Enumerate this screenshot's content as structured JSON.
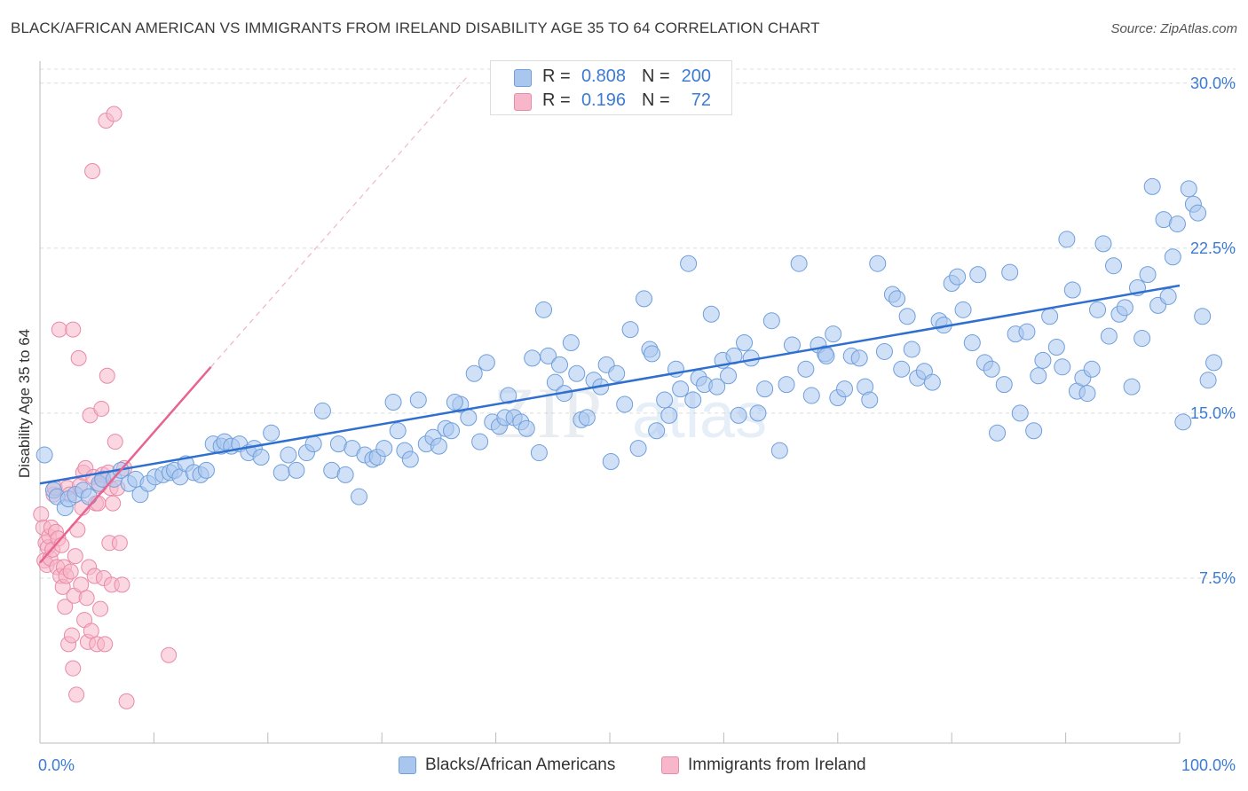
{
  "title": "BLACK/AFRICAN AMERICAN VS IMMIGRANTS FROM IRELAND DISABILITY AGE 35 TO 64 CORRELATION CHART",
  "source": "Source: ZipAtlas.com",
  "watermark": {
    "zip": "ZIP",
    "atlas": "atlas"
  },
  "colors": {
    "blue_fill": "#a9c7ee",
    "blue_stroke": "#6f9fdc",
    "blue_line": "#2e6fcf",
    "pink_fill": "#f7b6c9",
    "pink_stroke": "#e88aa8",
    "pink_line": "#e8638f",
    "axis_text": "#3b7bd4",
    "grid": "#dcdcdc"
  },
  "legend_box": {
    "rows": [
      {
        "r_label": "R =",
        "r_value": "0.808",
        "n_label": "N =",
        "n_value": "200"
      },
      {
        "r_label": "R =",
        "r_value": "0.196",
        "n_label": "N =",
        "n_value": "72"
      }
    ]
  },
  "legend": [
    "Blacks/African Americans",
    "Immigrants from Ireland"
  ],
  "chart_data": {
    "type": "scatter",
    "title": "BLACK/AFRICAN AMERICAN VS IMMIGRANTS FROM IRELAND DISABILITY AGE 35 TO 64 CORRELATION CHART",
    "xlabel": "",
    "ylabel": "Disability Age 35 to 64",
    "xlim": [
      0,
      100
    ],
    "ylim": [
      0,
      31
    ],
    "x_tick_labels": [
      "0.0%",
      "100.0%"
    ],
    "y_ticks": [
      7.5,
      15.0,
      22.5,
      30.0
    ],
    "y_tick_labels": [
      "7.5%",
      "15.0%",
      "22.5%",
      "30.0%"
    ],
    "grid": true,
    "legend_position": "bottom",
    "series": [
      {
        "name": "Blacks/African Americans",
        "color": "#a9c7ee",
        "r": 0.808,
        "n": 200,
        "trend": {
          "x": [
            0,
            100
          ],
          "y": [
            11.8,
            20.8
          ]
        },
        "points": [
          [
            0.4,
            13.1
          ],
          [
            1.2,
            11.5
          ],
          [
            1.5,
            11.2
          ],
          [
            2.2,
            10.7
          ],
          [
            2.5,
            11.1
          ],
          [
            3.1,
            11.3
          ],
          [
            3.8,
            11.5
          ],
          [
            4.3,
            11.2
          ],
          [
            5.2,
            11.8
          ],
          [
            5.5,
            12.0
          ],
          [
            6.5,
            12.0
          ],
          [
            7.1,
            12.4
          ],
          [
            7.8,
            11.8
          ],
          [
            8.4,
            12.0
          ],
          [
            8.8,
            11.3
          ],
          [
            9.5,
            11.8
          ],
          [
            10.1,
            12.1
          ],
          [
            10.8,
            12.2
          ],
          [
            11.4,
            12.3
          ],
          [
            11.8,
            12.4
          ],
          [
            12.3,
            12.1
          ],
          [
            12.8,
            12.7
          ],
          [
            13.5,
            12.3
          ],
          [
            14.1,
            12.2
          ],
          [
            14.6,
            12.4
          ],
          [
            15.2,
            13.6
          ],
          [
            15.9,
            13.5
          ],
          [
            16.2,
            13.7
          ],
          [
            16.8,
            13.5
          ],
          [
            17.5,
            13.6
          ],
          [
            18.3,
            13.2
          ],
          [
            18.8,
            13.4
          ],
          [
            19.4,
            13.0
          ],
          [
            20.3,
            14.1
          ],
          [
            21.2,
            12.3
          ],
          [
            21.8,
            13.1
          ],
          [
            22.5,
            12.4
          ],
          [
            23.4,
            13.2
          ],
          [
            24.0,
            13.6
          ],
          [
            24.8,
            15.1
          ],
          [
            25.6,
            12.4
          ],
          [
            26.2,
            13.6
          ],
          [
            26.8,
            12.2
          ],
          [
            27.4,
            13.4
          ],
          [
            28.0,
            11.2
          ],
          [
            28.5,
            13.1
          ],
          [
            29.2,
            12.9
          ],
          [
            29.6,
            13.0
          ],
          [
            30.2,
            13.4
          ],
          [
            31.0,
            15.5
          ],
          [
            31.4,
            14.2
          ],
          [
            32.0,
            13.3
          ],
          [
            32.5,
            12.9
          ],
          [
            33.2,
            15.6
          ],
          [
            33.9,
            13.6
          ],
          [
            34.5,
            13.9
          ],
          [
            35.0,
            13.5
          ],
          [
            35.6,
            14.3
          ],
          [
            36.1,
            14.2
          ],
          [
            36.9,
            15.4
          ],
          [
            37.6,
            14.8
          ],
          [
            38.1,
            16.8
          ],
          [
            38.6,
            13.7
          ],
          [
            39.2,
            17.3
          ],
          [
            39.7,
            14.6
          ],
          [
            40.3,
            14.4
          ],
          [
            40.8,
            14.8
          ],
          [
            41.1,
            15.8
          ],
          [
            41.6,
            14.8
          ],
          [
            42.2,
            14.6
          ],
          [
            42.7,
            14.3
          ],
          [
            43.2,
            17.5
          ],
          [
            43.8,
            13.2
          ],
          [
            44.2,
            19.7
          ],
          [
            44.6,
            17.6
          ],
          [
            45.2,
            16.4
          ],
          [
            45.6,
            17.2
          ],
          [
            46.0,
            15.9
          ],
          [
            46.6,
            18.2
          ],
          [
            47.1,
            16.8
          ],
          [
            47.5,
            14.7
          ],
          [
            48.0,
            14.8
          ],
          [
            48.6,
            16.5
          ],
          [
            49.2,
            16.2
          ],
          [
            49.7,
            17.2
          ],
          [
            50.1,
            12.8
          ],
          [
            50.6,
            16.8
          ],
          [
            51.3,
            15.4
          ],
          [
            51.8,
            18.8
          ],
          [
            52.5,
            13.4
          ],
          [
            53.0,
            20.2
          ],
          [
            53.5,
            17.9
          ],
          [
            54.1,
            14.2
          ],
          [
            54.8,
            15.6
          ],
          [
            55.2,
            14.9
          ],
          [
            55.8,
            17.0
          ],
          [
            56.2,
            16.1
          ],
          [
            56.9,
            21.8
          ],
          [
            57.3,
            15.6
          ],
          [
            57.8,
            16.6
          ],
          [
            58.3,
            16.3
          ],
          [
            58.9,
            19.5
          ],
          [
            59.4,
            16.2
          ],
          [
            59.9,
            17.4
          ],
          [
            60.4,
            16.7
          ],
          [
            60.9,
            17.6
          ],
          [
            61.3,
            14.9
          ],
          [
            61.8,
            18.2
          ],
          [
            62.4,
            17.5
          ],
          [
            63.0,
            15.0
          ],
          [
            63.6,
            16.1
          ],
          [
            64.2,
            19.2
          ],
          [
            64.9,
            13.3
          ],
          [
            65.5,
            16.3
          ],
          [
            66.0,
            18.1
          ],
          [
            66.6,
            21.8
          ],
          [
            67.2,
            17.0
          ],
          [
            67.7,
            15.8
          ],
          [
            68.3,
            18.1
          ],
          [
            68.9,
            17.7
          ],
          [
            69.6,
            18.6
          ],
          [
            70.0,
            15.7
          ],
          [
            70.6,
            16.1
          ],
          [
            71.2,
            17.6
          ],
          [
            71.9,
            17.5
          ],
          [
            72.4,
            16.2
          ],
          [
            72.8,
            15.6
          ],
          [
            73.5,
            21.8
          ],
          [
            74.1,
            17.8
          ],
          [
            74.8,
            20.4
          ],
          [
            75.2,
            20.2
          ],
          [
            75.6,
            17.0
          ],
          [
            76.1,
            19.4
          ],
          [
            76.5,
            17.9
          ],
          [
            77.0,
            16.6
          ],
          [
            77.6,
            16.9
          ],
          [
            78.3,
            16.4
          ],
          [
            78.9,
            19.2
          ],
          [
            79.3,
            19.0
          ],
          [
            80.0,
            20.9
          ],
          [
            80.5,
            21.2
          ],
          [
            81.0,
            19.7
          ],
          [
            81.8,
            18.2
          ],
          [
            82.3,
            21.3
          ],
          [
            82.9,
            17.3
          ],
          [
            83.5,
            17.0
          ],
          [
            84.0,
            14.1
          ],
          [
            84.6,
            16.3
          ],
          [
            85.1,
            21.4
          ],
          [
            85.6,
            18.6
          ],
          [
            86.0,
            15.0
          ],
          [
            86.6,
            18.7
          ],
          [
            87.2,
            14.2
          ],
          [
            87.6,
            16.7
          ],
          [
            88.0,
            17.4
          ],
          [
            88.6,
            19.4
          ],
          [
            89.2,
            18.0
          ],
          [
            89.7,
            17.1
          ],
          [
            90.1,
            22.9
          ],
          [
            90.6,
            20.6
          ],
          [
            91.0,
            16.0
          ],
          [
            91.5,
            16.6
          ],
          [
            91.9,
            15.9
          ],
          [
            92.3,
            17.0
          ],
          [
            92.8,
            19.7
          ],
          [
            93.3,
            22.7
          ],
          [
            93.8,
            18.5
          ],
          [
            94.2,
            21.7
          ],
          [
            94.7,
            19.5
          ],
          [
            95.2,
            19.8
          ],
          [
            95.8,
            16.2
          ],
          [
            96.3,
            20.7
          ],
          [
            96.7,
            18.4
          ],
          [
            97.2,
            21.3
          ],
          [
            97.6,
            25.3
          ],
          [
            98.1,
            19.9
          ],
          [
            98.6,
            23.8
          ],
          [
            99.0,
            20.3
          ],
          [
            99.4,
            22.1
          ],
          [
            99.8,
            23.6
          ],
          [
            100.3,
            14.6
          ],
          [
            100.8,
            25.2
          ],
          [
            101.2,
            24.5
          ],
          [
            101.6,
            24.1
          ],
          [
            102.0,
            19.4
          ],
          [
            102.5,
            16.5
          ],
          [
            103.0,
            17.3
          ],
          [
            36.4,
            15.5
          ],
          [
            53.7,
            17.7
          ],
          [
            69.0,
            17.6
          ]
        ]
      },
      {
        "name": "Immigrants from Ireland",
        "color": "#f7b6c9",
        "r": 0.196,
        "n": 72,
        "trend": {
          "x": [
            0,
            15
          ],
          "y": [
            8.2,
            17.1
          ]
        },
        "trend_extension": {
          "x": [
            15,
            37.5
          ],
          "y": [
            17.1,
            30.3
          ]
        },
        "points": [
          [
            0.1,
            10.4
          ],
          [
            0.3,
            9.8
          ],
          [
            0.4,
            8.3
          ],
          [
            0.5,
            9.1
          ],
          [
            0.6,
            8.1
          ],
          [
            0.7,
            8.9
          ],
          [
            0.8,
            9.4
          ],
          [
            0.9,
            8.4
          ],
          [
            1.0,
            9.8
          ],
          [
            1.1,
            8.8
          ],
          [
            1.2,
            11.3
          ],
          [
            1.3,
            11.6
          ],
          [
            1.4,
            9.6
          ],
          [
            1.5,
            8.0
          ],
          [
            1.6,
            9.3
          ],
          [
            1.8,
            7.6
          ],
          [
            1.9,
            9.0
          ],
          [
            2.0,
            7.1
          ],
          [
            2.1,
            8.0
          ],
          [
            2.2,
            6.2
          ],
          [
            2.3,
            7.6
          ],
          [
            2.4,
            11.6
          ],
          [
            2.5,
            4.5
          ],
          [
            2.6,
            11.3
          ],
          [
            2.7,
            7.8
          ],
          [
            2.8,
            4.9
          ],
          [
            2.9,
            3.4
          ],
          [
            3.0,
            6.7
          ],
          [
            3.1,
            8.5
          ],
          [
            3.2,
            2.2
          ],
          [
            3.3,
            9.7
          ],
          [
            3.4,
            17.5
          ],
          [
            3.5,
            11.7
          ],
          [
            3.6,
            7.2
          ],
          [
            3.7,
            10.7
          ],
          [
            3.8,
            12.3
          ],
          [
            3.9,
            5.6
          ],
          [
            4.0,
            12.5
          ],
          [
            4.1,
            6.6
          ],
          [
            4.2,
            4.6
          ],
          [
            4.3,
            8.0
          ],
          [
            4.4,
            14.9
          ],
          [
            4.5,
            5.1
          ],
          [
            4.6,
            26.0
          ],
          [
            4.7,
            12.1
          ],
          [
            4.8,
            7.6
          ],
          [
            4.9,
            10.9
          ],
          [
            5.0,
            4.5
          ],
          [
            5.1,
            10.9
          ],
          [
            5.2,
            11.7
          ],
          [
            5.3,
            6.1
          ],
          [
            5.4,
            15.2
          ],
          [
            5.5,
            12.2
          ],
          [
            5.6,
            7.5
          ],
          [
            5.7,
            4.5
          ],
          [
            5.8,
            28.3
          ],
          [
            5.9,
            16.7
          ],
          [
            6.0,
            12.3
          ],
          [
            6.1,
            9.1
          ],
          [
            6.2,
            11.6
          ],
          [
            6.3,
            7.2
          ],
          [
            6.4,
            10.9
          ],
          [
            6.5,
            28.6
          ],
          [
            6.6,
            13.7
          ],
          [
            6.8,
            11.6
          ],
          [
            7.0,
            9.1
          ],
          [
            7.2,
            7.2
          ],
          [
            7.4,
            12.5
          ],
          [
            7.6,
            1.9
          ],
          [
            11.3,
            4.0
          ],
          [
            1.7,
            18.8
          ],
          [
            2.9,
            18.8
          ]
        ]
      }
    ]
  }
}
